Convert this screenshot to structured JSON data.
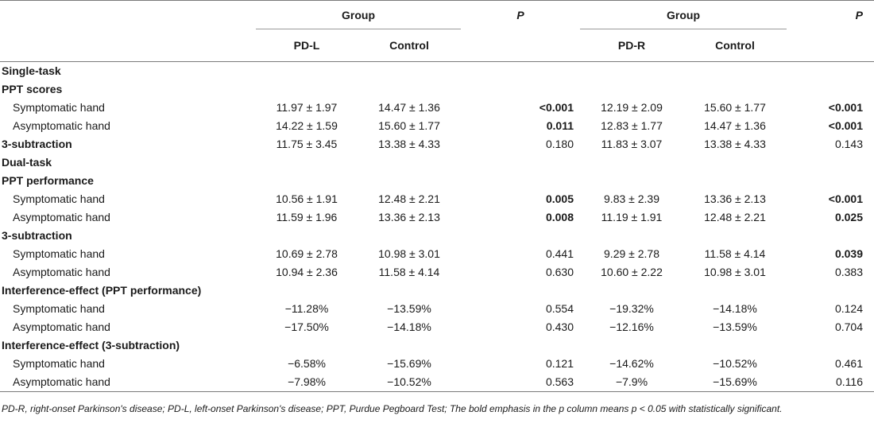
{
  "header": {
    "group_left": "Group",
    "group_right": "Group",
    "p_left": "P",
    "p_right": "P",
    "col_pdl": "PD-L",
    "col_control_left": "Control",
    "col_pdr": "PD-R",
    "col_control_right": "Control"
  },
  "rows": [
    {
      "type": "section",
      "label": "Single-task"
    },
    {
      "type": "section",
      "label": "PPT scores"
    },
    {
      "type": "data",
      "label": "Symptomatic hand",
      "pdl": "11.97 ± 1.97",
      "ctl1": "14.47 ± 1.36",
      "p1": "<0.001",
      "p1_bold": true,
      "pdr": "12.19 ± 2.09",
      "ctl2": "15.60 ± 1.77",
      "p2": "<0.001",
      "p2_bold": true
    },
    {
      "type": "data",
      "label": "Asymptomatic hand",
      "pdl": "14.22 ± 1.59",
      "ctl1": "15.60 ± 1.77",
      "p1": "0.011",
      "p1_bold": true,
      "pdr": "12.83 ± 1.77",
      "ctl2": "14.47 ± 1.36",
      "p2": "<0.001",
      "p2_bold": true
    },
    {
      "type": "section_data",
      "label": "3-subtraction",
      "pdl": "11.75 ± 3.45",
      "ctl1": "13.38 ± 4.33",
      "p1": "0.180",
      "p1_bold": false,
      "pdr": "11.83 ± 3.07",
      "ctl2": "13.38 ± 4.33",
      "p2": "0.143",
      "p2_bold": false
    },
    {
      "type": "section",
      "label": "Dual-task"
    },
    {
      "type": "section",
      "label": "PPT performance"
    },
    {
      "type": "data",
      "label": "Symptomatic hand",
      "pdl": "10.56 ± 1.91",
      "ctl1": "12.48 ± 2.21",
      "p1": "0.005",
      "p1_bold": true,
      "pdr": "9.83 ± 2.39",
      "ctl2": "13.36 ± 2.13",
      "p2": "<0.001",
      "p2_bold": true
    },
    {
      "type": "data",
      "label": "Asymptomatic hand",
      "pdl": "11.59 ± 1.96",
      "ctl1": "13.36 ± 2.13",
      "p1": "0.008",
      "p1_bold": true,
      "pdr": "11.19 ± 1.91",
      "ctl2": "12.48 ± 2.21",
      "p2": "0.025",
      "p2_bold": true
    },
    {
      "type": "section",
      "label": "3-subtraction"
    },
    {
      "type": "data",
      "label": "Symptomatic hand",
      "pdl": "10.69 ± 2.78",
      "ctl1": "10.98 ± 3.01",
      "p1": "0.441",
      "p1_bold": false,
      "pdr": "9.29 ± 2.78",
      "ctl2": "11.58 ± 4.14",
      "p2": "0.039",
      "p2_bold": true
    },
    {
      "type": "data",
      "label": "Asymptomatic hand",
      "pdl": "10.94 ± 2.36",
      "ctl1": "11.58 ± 4.14",
      "p1": "0.630",
      "p1_bold": false,
      "pdr": "10.60 ± 2.22",
      "ctl2": "10.98 ± 3.01",
      "p2": "0.383",
      "p2_bold": false
    },
    {
      "type": "section",
      "label": "Interference-effect (PPT performance)"
    },
    {
      "type": "data",
      "label": "Symptomatic hand",
      "pdl": "−11.28%",
      "ctl1": "−13.59%",
      "p1": "0.554",
      "p1_bold": false,
      "pdr": "−19.32%",
      "ctl2": "−14.18%",
      "p2": "0.124",
      "p2_bold": false
    },
    {
      "type": "data",
      "label": "Asymptomatic hand",
      "pdl": "−17.50%",
      "ctl1": "−14.18%",
      "p1": "0.430",
      "p1_bold": false,
      "pdr": "−12.16%",
      "ctl2": "−13.59%",
      "p2": "0.704",
      "p2_bold": false
    },
    {
      "type": "section",
      "label": "Interference-effect (3-subtraction)"
    },
    {
      "type": "data",
      "label": "Symptomatic hand",
      "pdl": "−6.58%",
      "ctl1": "−15.69%",
      "p1": "0.121",
      "p1_bold": false,
      "pdr": "−14.62%",
      "ctl2": "−10.52%",
      "p2": "0.461",
      "p2_bold": false
    },
    {
      "type": "data",
      "label": "Asymptomatic hand",
      "pdl": "−7.98%",
      "ctl1": "−10.52%",
      "p1": "0.563",
      "p1_bold": false,
      "pdr": "−7.9%",
      "ctl2": "−15.69%",
      "p2": "0.116",
      "p2_bold": false
    }
  ],
  "footnote": "PD-R, right-onset Parkinson's disease; PD-L, left-onset Parkinson's disease; PPT, Purdue Pegboard Test; The bold emphasis in the p column means p < 0.05 with statistically significant."
}
